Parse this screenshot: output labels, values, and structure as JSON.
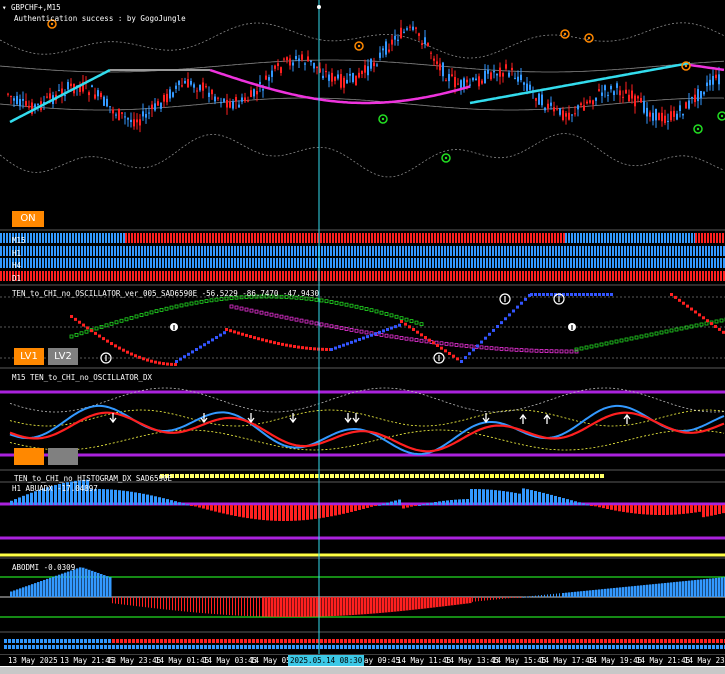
{
  "window": {
    "title": "GBPCHF+,M15",
    "auth_message": "Authentication success : by GogoJungle"
  },
  "on_button": "ON",
  "mtf": {
    "rows": [
      "M15",
      "H1",
      "H4",
      "D1"
    ]
  },
  "osc": {
    "label": "TEN_to_CHI_no_OSCILLATOR_ver_005_SAD6590E -56.5229 -86.7470 -47.9430"
  },
  "levels": {
    "lv1": "LV1",
    "lv2": "LV2"
  },
  "osc_dx": {
    "label": "M15 TEN_to_CHI_no_OSCILLATOR_DX"
  },
  "hist": {
    "label": "TEN_to_CHI_no_HISTOGRAM_DX SAD6590E"
  },
  "adx": {
    "label": "H1 ABUADX -17.04897"
  },
  "dmi": {
    "label": "ABODMI -0.0309"
  },
  "time_axis": {
    "ticks": [
      "13 May 2025",
      "13 May 21:45",
      "13 May 23:45",
      "14 May 01:45",
      "14 May 03:45",
      "14 May 05:",
      "14 May 09:45",
      "14 May 11:45",
      "14 May 13:45",
      "14 May 15:45",
      "14 May 17:45",
      "14 May 19:45",
      "14 May 21:45",
      "14 May 23:4"
    ],
    "cursor": "2025.05.14 08:30"
  },
  "colors": {
    "bull": "#3399ff",
    "bear": "#ff2020",
    "cyan": "#33ddee",
    "magenta": "#ee33dd",
    "purple": "#aa22dd",
    "yellow": "#ffff44",
    "green": "#22dd22",
    "orange": "#ff8800"
  }
}
